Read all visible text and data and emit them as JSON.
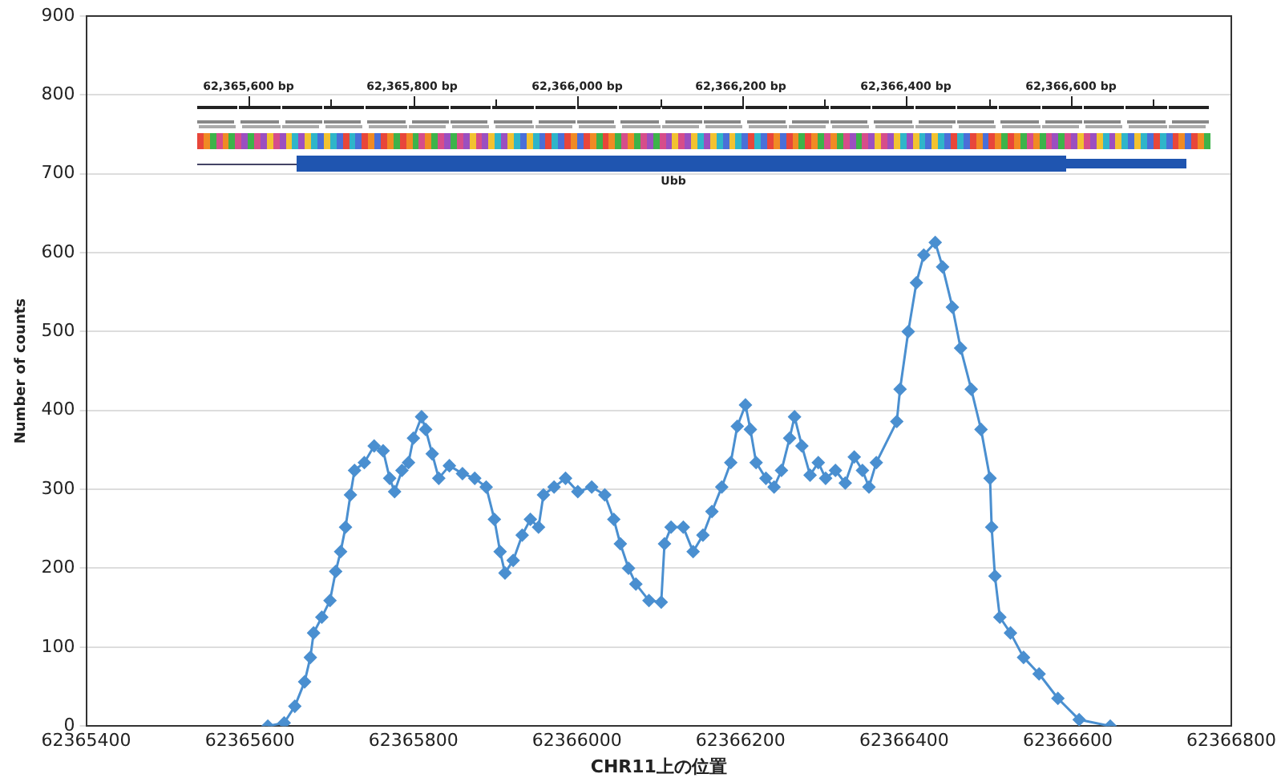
{
  "chart_data": {
    "type": "line",
    "xlabel": "CHR11上の位置",
    "ylabel": "Number of counts",
    "xlim": [
      62365400,
      62366800
    ],
    "xticks": [
      62365400,
      62365600,
      62365800,
      62366000,
      62366200,
      62366400,
      62366600,
      62366800
    ],
    "ylim": [
      0,
      900
    ],
    "yticks": [
      0,
      100,
      200,
      300,
      400,
      500,
      600,
      700,
      800,
      900
    ],
    "grid": "y",
    "marker": "diamond",
    "line_style": "solid",
    "annotations": [
      "62,365,600 bp",
      "62,365,800 bp",
      "62,366,000 bp",
      "62,366,200 bp",
      "62,366,400 bp",
      "62,366,600 bp",
      "Ubb"
    ],
    "series": [
      {
        "color": "#4a8fd0",
        "x": [
          62365622,
          62365642,
          62365655,
          62365667,
          62365674,
          62365678,
          62365688,
          62365698,
          62365705,
          62365711,
          62365717,
          62365723,
          62365728,
          62365740,
          62365752,
          62365763,
          62365771,
          62365777,
          62365786,
          62365794,
          62365800,
          62365810,
          62365815,
          62365823,
          62365831,
          62365844,
          62365860,
          62365875,
          62365889,
          62365899,
          62365906,
          62365912,
          62365922,
          62365933,
          62365943,
          62365953,
          62365959,
          62365972,
          62365986,
          62366001,
          62366018,
          62366034,
          62366045,
          62366053,
          62366063,
          62366072,
          62366088,
          62366103,
          62366107,
          62366115,
          62366130,
          62366142,
          62366154,
          62366165,
          62366177,
          62366188,
          62366196,
          62366206,
          62366212,
          62366219,
          62366231,
          62366241,
          62366250,
          62366260,
          62366266,
          62366275,
          62366285,
          62366295,
          62366304,
          62366316,
          62366328,
          62366339,
          62366349,
          62366357,
          62366366,
          62366391,
          62366395,
          62366405,
          62366415,
          62366424,
          62366438,
          62366447,
          62366459,
          62366469,
          62366482,
          62366494,
          62366505,
          62366507,
          62366511,
          62366517,
          62366530,
          62366546,
          62366565,
          62366588,
          62366614,
          62366652
        ],
        "values": [
          0,
          4,
          25,
          56,
          87,
          118,
          138,
          159,
          196,
          221,
          252,
          293,
          324,
          334,
          355,
          349,
          314,
          297,
          324,
          334,
          365,
          392,
          376,
          345,
          314,
          330,
          320,
          314,
          303,
          262,
          221,
          194,
          210,
          242,
          262,
          252,
          293,
          303,
          314,
          297,
          303,
          293,
          262,
          231,
          200,
          180,
          159,
          157,
          231,
          252,
          252,
          221,
          242,
          272,
          303,
          334,
          380,
          407,
          376,
          334,
          314,
          303,
          324,
          365,
          392,
          355,
          318,
          334,
          314,
          324,
          308,
          341,
          324,
          303,
          334,
          386,
          427,
          500,
          562,
          597,
          613,
          582,
          531,
          479,
          427,
          376,
          314,
          252,
          190,
          138,
          118,
          87,
          66,
          35,
          8,
          0
        ]
      }
    ]
  }
}
